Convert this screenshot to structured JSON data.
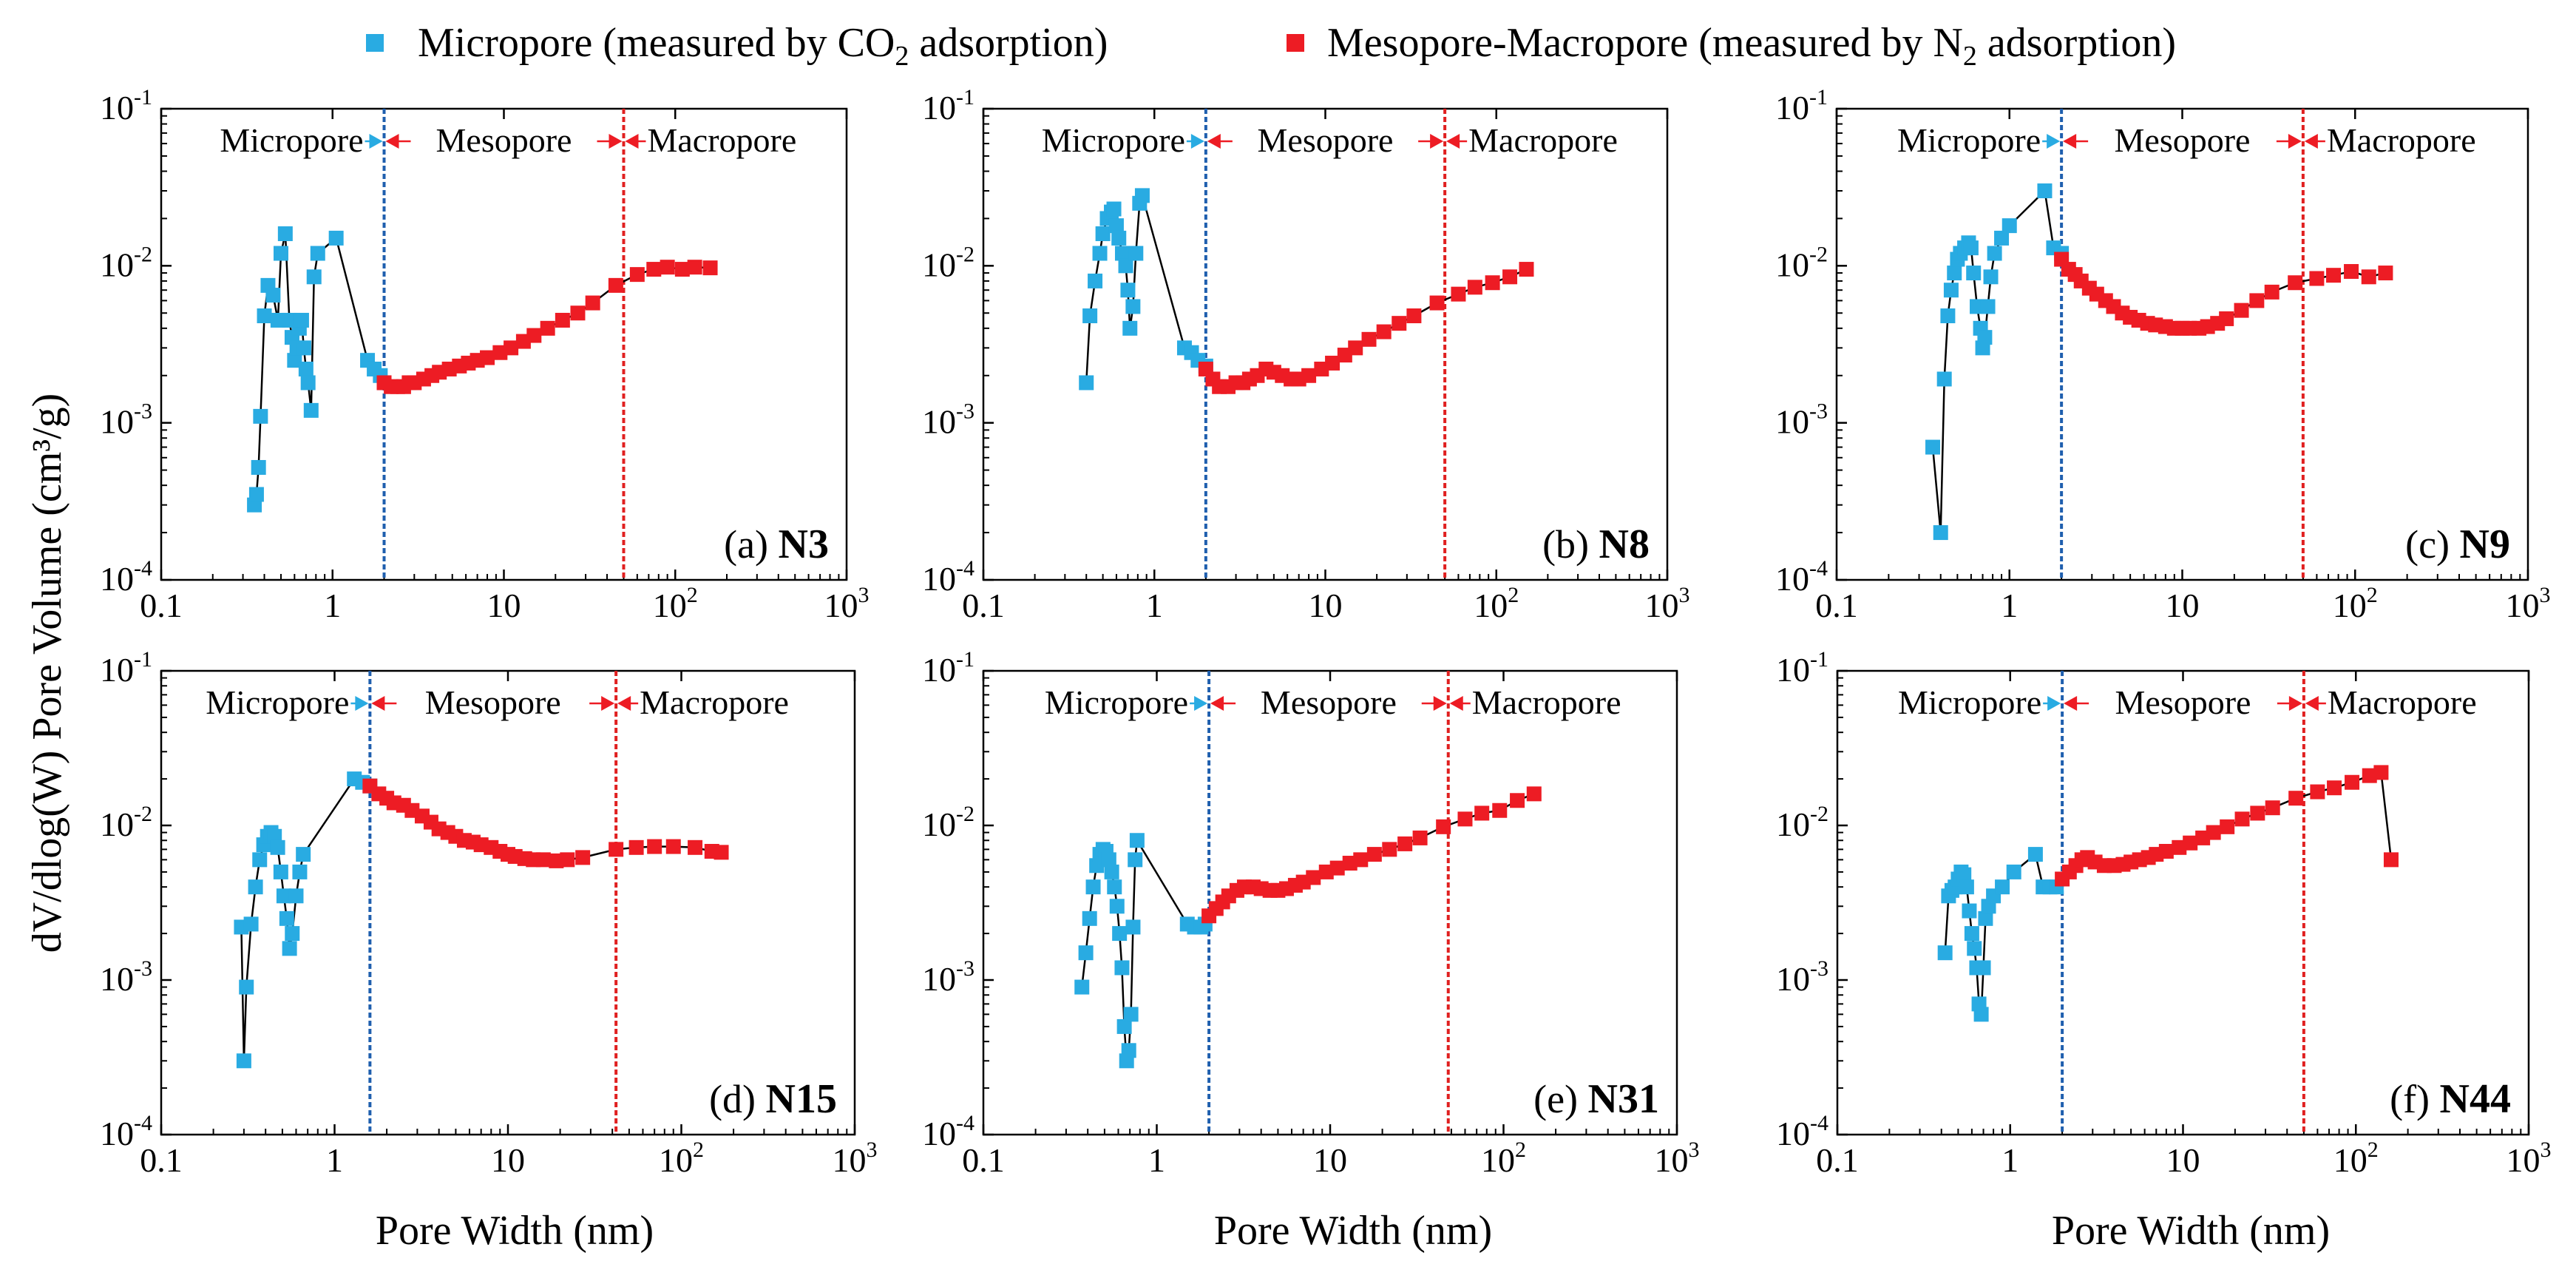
{
  "legend": {
    "series1": {
      "text_pre": "Micropore (measured by CO",
      "sub": "2",
      "text_post": " adsorption)"
    },
    "series2": {
      "text_pre": "Mesopore-Macropore (measured by N",
      "sub": "2",
      "text_post": " adsorption)"
    }
  },
  "colors": {
    "micro": "#29abe2",
    "meso": "#ed1c24",
    "micro_line": "#1f5fae",
    "meso_line": "#e02020",
    "curve": "#000000"
  },
  "ylabel": "dV/dlog(W) Pore Volume (cm³/g)",
  "xlabel": "Pore Width (nm)",
  "x_ticks": [
    {
      "base": "0.1",
      "exp": ""
    },
    {
      "base": "1",
      "exp": ""
    },
    {
      "base": "10",
      "exp": ""
    },
    {
      "base": "10",
      "exp": "2"
    },
    {
      "base": "10",
      "exp": "3"
    }
  ],
  "y_ticks": [
    {
      "base": "10",
      "exp": "-4"
    },
    {
      "base": "10",
      "exp": "-3"
    },
    {
      "base": "10",
      "exp": "-2"
    },
    {
      "base": "10",
      "exp": "-1"
    }
  ],
  "region_labels": {
    "micro": "Micropore",
    "meso": "Mesopore",
    "macro": "Macropore"
  },
  "chart_data": [
    {
      "type": "scatter",
      "label": "(a)",
      "sample": "N3",
      "xscale": "log",
      "yscale": "log",
      "xlim": [
        0.1,
        1000
      ],
      "ylim": [
        0.0001,
        0.1
      ],
      "boundaries": [
        2,
        50
      ],
      "series": [
        {
          "name": "Micropore (measured by CO2 adsorption)",
          "x": [
            0.35,
            0.36,
            0.37,
            0.38,
            0.4,
            0.42,
            0.45,
            0.48,
            0.5,
            0.53,
            0.56,
            0.58,
            0.6,
            0.62,
            0.64,
            0.66,
            0.68,
            0.7,
            0.72,
            0.75,
            0.78,
            0.82,
            1.05,
            1.6,
            1.75,
            1.9,
            2.0
          ],
          "y": [
            0.0003,
            0.00035,
            0.00052,
            0.0011,
            0.0048,
            0.0075,
            0.0065,
            0.0045,
            0.012,
            0.016,
            0.0045,
            0.0035,
            0.0025,
            0.003,
            0.004,
            0.0045,
            0.003,
            0.0022,
            0.0018,
            0.0012,
            0.0085,
            0.012,
            0.015,
            0.0025,
            0.0022,
            0.002,
            0.0018
          ]
        },
        {
          "name": "Mesopore-Macropore (measured by N2 adsorption)",
          "x": [
            2.0,
            2.2,
            2.4,
            2.6,
            2.8,
            3.0,
            3.4,
            3.8,
            4.2,
            4.8,
            5.5,
            6.2,
            7.0,
            8.0,
            9.5,
            11,
            13,
            15,
            18,
            22,
            27,
            33,
            45,
            60,
            75,
            90,
            110,
            130,
            160
          ],
          "y": [
            0.0018,
            0.0017,
            0.0017,
            0.0017,
            0.0018,
            0.0018,
            0.0019,
            0.002,
            0.0021,
            0.0022,
            0.0023,
            0.0024,
            0.0025,
            0.0026,
            0.0028,
            0.003,
            0.0033,
            0.0036,
            0.004,
            0.0045,
            0.005,
            0.0058,
            0.0075,
            0.0088,
            0.0095,
            0.0098,
            0.0095,
            0.0098,
            0.0097
          ]
        }
      ]
    },
    {
      "type": "scatter",
      "label": "(b)",
      "sample": "N8",
      "xscale": "log",
      "yscale": "log",
      "xlim": [
        0.1,
        1000
      ],
      "ylim": [
        0.0001,
        0.1
      ],
      "boundaries": [
        2,
        50
      ],
      "series": [
        {
          "name": "Micropore (measured by CO2 adsorption)",
          "x": [
            0.4,
            0.42,
            0.45,
            0.48,
            0.5,
            0.53,
            0.56,
            0.58,
            0.6,
            0.62,
            0.65,
            0.68,
            0.7,
            0.72,
            0.75,
            0.78,
            0.82,
            0.85,
            1.5,
            1.65,
            1.8,
            2.0
          ],
          "y": [
            0.0018,
            0.0048,
            0.008,
            0.012,
            0.016,
            0.02,
            0.022,
            0.023,
            0.018,
            0.015,
            0.012,
            0.01,
            0.007,
            0.004,
            0.0055,
            0.012,
            0.025,
            0.028,
            0.003,
            0.0028,
            0.0025,
            0.0023
          ]
        },
        {
          "name": "Mesopore-Macropore (measured by N2 adsorption)",
          "x": [
            2.0,
            2.2,
            2.4,
            2.7,
            3.0,
            3.3,
            3.6,
            4.0,
            4.5,
            5.0,
            5.6,
            6.3,
            7.0,
            8.0,
            9.5,
            11,
            13,
            15,
            18,
            22,
            27,
            33,
            45,
            60,
            75,
            95,
            120,
            150
          ],
          "y": [
            0.0022,
            0.0019,
            0.0017,
            0.0017,
            0.0018,
            0.0018,
            0.0019,
            0.002,
            0.0022,
            0.0021,
            0.002,
            0.0019,
            0.0019,
            0.002,
            0.0022,
            0.0024,
            0.0027,
            0.003,
            0.0034,
            0.0038,
            0.0043,
            0.0048,
            0.0058,
            0.0066,
            0.0073,
            0.0078,
            0.0085,
            0.0095
          ]
        }
      ]
    },
    {
      "type": "scatter",
      "label": "(c)",
      "sample": "N9",
      "xscale": "log",
      "yscale": "log",
      "xlim": [
        0.1,
        1000
      ],
      "ylim": [
        0.0001,
        0.1
      ],
      "boundaries": [
        2,
        50
      ],
      "series": [
        {
          "name": "Micropore (measured by CO2 adsorption)",
          "x": [
            0.36,
            0.4,
            0.42,
            0.44,
            0.46,
            0.48,
            0.5,
            0.52,
            0.55,
            0.58,
            0.6,
            0.62,
            0.65,
            0.68,
            0.7,
            0.72,
            0.75,
            0.78,
            0.82,
            0.9,
            1.0,
            1.6,
            1.8,
            2.0
          ],
          "y": [
            0.0007,
            0.0002,
            0.0019,
            0.0048,
            0.007,
            0.009,
            0.011,
            0.012,
            0.013,
            0.014,
            0.013,
            0.009,
            0.0055,
            0.004,
            0.003,
            0.0035,
            0.0055,
            0.0085,
            0.012,
            0.015,
            0.018,
            0.03,
            0.013,
            0.012
          ]
        },
        {
          "name": "Mesopore-Macropore (measured by N2 adsorption)",
          "x": [
            2.0,
            2.2,
            2.4,
            2.6,
            2.9,
            3.2,
            3.6,
            4.0,
            4.5,
            5.0,
            5.6,
            6.3,
            7.0,
            8.0,
            9.0,
            10,
            11,
            12.5,
            14,
            16,
            18,
            22,
            27,
            33,
            45,
            60,
            75,
            95,
            120,
            150
          ],
          "y": [
            0.011,
            0.0095,
            0.0088,
            0.008,
            0.0072,
            0.0066,
            0.006,
            0.0055,
            0.005,
            0.0047,
            0.0045,
            0.0043,
            0.0042,
            0.0041,
            0.004,
            0.004,
            0.004,
            0.004,
            0.0041,
            0.0043,
            0.0046,
            0.0052,
            0.006,
            0.0068,
            0.0078,
            0.0083,
            0.0087,
            0.0092,
            0.0085,
            0.009
          ]
        }
      ]
    },
    {
      "type": "scatter",
      "label": "(d)",
      "sample": "N15",
      "xscale": "log",
      "yscale": "log",
      "xlim": [
        0.1,
        1000
      ],
      "ylim": [
        0.0001,
        0.1
      ],
      "boundaries": [
        1.6,
        42
      ],
      "series": [
        {
          "name": "Micropore (measured by CO2 adsorption)",
          "x": [
            0.29,
            0.3,
            0.31,
            0.33,
            0.35,
            0.37,
            0.39,
            0.41,
            0.43,
            0.45,
            0.47,
            0.49,
            0.51,
            0.53,
            0.55,
            0.57,
            0.6,
            0.63,
            0.66,
            1.3,
            1.45,
            1.6
          ],
          "y": [
            0.0022,
            0.0003,
            0.0009,
            0.0023,
            0.004,
            0.006,
            0.0075,
            0.0085,
            0.009,
            0.0085,
            0.0072,
            0.005,
            0.0035,
            0.0025,
            0.0016,
            0.002,
            0.0035,
            0.005,
            0.0065,
            0.02,
            0.019,
            0.018
          ]
        },
        {
          "name": "Mesopore-Macropore (measured by N2 adsorption)",
          "x": [
            1.6,
            1.8,
            2.0,
            2.2,
            2.5,
            2.8,
            3.2,
            3.6,
            4.0,
            4.5,
            5.0,
            5.6,
            6.3,
            7.0,
            8.0,
            9.0,
            10,
            11,
            12.5,
            14,
            16,
            19,
            22,
            27,
            42,
            55,
            70,
            90,
            120,
            150,
            170
          ],
          "y": [
            0.018,
            0.016,
            0.015,
            0.014,
            0.0135,
            0.0125,
            0.0115,
            0.0105,
            0.0095,
            0.009,
            0.0085,
            0.008,
            0.0078,
            0.0075,
            0.0072,
            0.0068,
            0.0065,
            0.0063,
            0.0061,
            0.006,
            0.006,
            0.0059,
            0.006,
            0.0062,
            0.007,
            0.0072,
            0.0073,
            0.0073,
            0.0072,
            0.0068,
            0.0067
          ]
        }
      ]
    },
    {
      "type": "scatter",
      "label": "(e)",
      "sample": "N31",
      "xscale": "log",
      "yscale": "log",
      "xlim": [
        0.1,
        1000
      ],
      "ylim": [
        0.0001,
        0.1
      ],
      "boundaries": [
        2,
        48
      ],
      "series": [
        {
          "name": "Micropore (measured by CO2 adsorption)",
          "x": [
            0.37,
            0.39,
            0.41,
            0.43,
            0.45,
            0.47,
            0.49,
            0.51,
            0.53,
            0.55,
            0.57,
            0.59,
            0.61,
            0.63,
            0.65,
            0.67,
            0.69,
            0.71,
            0.73,
            0.75,
            0.77,
            1.5,
            1.65,
            1.8,
            1.9
          ],
          "y": [
            0.0009,
            0.0015,
            0.0025,
            0.004,
            0.0055,
            0.0065,
            0.007,
            0.0068,
            0.006,
            0.005,
            0.004,
            0.003,
            0.002,
            0.0012,
            0.0005,
            0.0003,
            0.00035,
            0.0006,
            0.0022,
            0.006,
            0.008,
            0.0023,
            0.0022,
            0.0022,
            0.0023
          ]
        },
        {
          "name": "Mesopore-Macropore (measured by N2 adsorption)",
          "x": [
            2.0,
            2.2,
            2.4,
            2.6,
            2.9,
            3.2,
            3.6,
            4.0,
            4.5,
            5.0,
            5.6,
            6.3,
            7.0,
            8.0,
            9.5,
            11,
            13,
            15,
            18,
            22,
            27,
            33,
            45,
            60,
            75,
            95,
            120,
            150
          ],
          "y": [
            0.0026,
            0.0029,
            0.0032,
            0.0035,
            0.0038,
            0.004,
            0.004,
            0.0039,
            0.0038,
            0.0038,
            0.0039,
            0.0041,
            0.0043,
            0.0046,
            0.005,
            0.0053,
            0.0057,
            0.006,
            0.0065,
            0.007,
            0.0076,
            0.0083,
            0.0098,
            0.011,
            0.012,
            0.0125,
            0.0145,
            0.016
          ]
        }
      ]
    },
    {
      "type": "scatter",
      "label": "(f)",
      "sample": "N44",
      "xscale": "log",
      "yscale": "log",
      "xlim": [
        0.1,
        1000
      ],
      "ylim": [
        0.0001,
        0.1
      ],
      "boundaries": [
        2,
        50
      ],
      "series": [
        {
          "name": "Micropore (measured by CO2 adsorption)",
          "x": [
            0.42,
            0.44,
            0.46,
            0.48,
            0.5,
            0.52,
            0.54,
            0.56,
            0.58,
            0.6,
            0.62,
            0.64,
            0.66,
            0.68,
            0.7,
            0.72,
            0.75,
            0.8,
            0.9,
            1.05,
            1.4,
            1.55,
            1.7,
            1.85
          ],
          "y": [
            0.0015,
            0.0035,
            0.0038,
            0.004,
            0.0045,
            0.005,
            0.0048,
            0.004,
            0.0028,
            0.002,
            0.0016,
            0.0012,
            0.0007,
            0.0006,
            0.0012,
            0.0025,
            0.003,
            0.0035,
            0.004,
            0.005,
            0.0065,
            0.004,
            0.004,
            0.004
          ]
        },
        {
          "name": "Mesopore-Macropore (measured by N2 adsorption)",
          "x": [
            2.0,
            2.2,
            2.4,
            2.6,
            2.8,
            3.1,
            3.5,
            4.0,
            4.5,
            5.0,
            5.6,
            6.3,
            7.0,
            8.0,
            9.5,
            11,
            13,
            15,
            18,
            22,
            27,
            33,
            45,
            60,
            75,
            95,
            120,
            140,
            160
          ],
          "y": [
            0.0045,
            0.005,
            0.0055,
            0.006,
            0.0062,
            0.0058,
            0.0055,
            0.0055,
            0.0056,
            0.0058,
            0.006,
            0.0062,
            0.0065,
            0.0068,
            0.0072,
            0.0077,
            0.0083,
            0.009,
            0.0098,
            0.011,
            0.012,
            0.013,
            0.015,
            0.0165,
            0.0175,
            0.019,
            0.021,
            0.022,
            0.006
          ]
        }
      ]
    }
  ]
}
